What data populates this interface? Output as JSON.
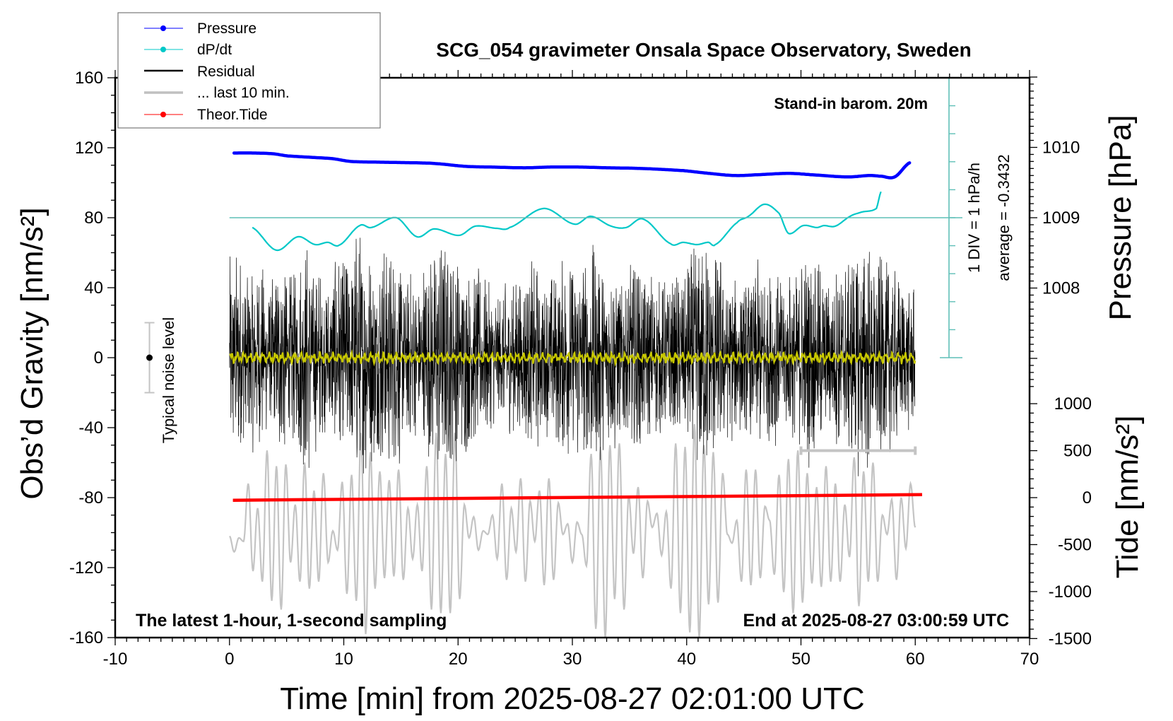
{
  "chart_data": {
    "type": "line",
    "title": "SCG_054 gravimeter Onsala Space Observatory, Sweden",
    "xlabel": "Time [min] from 2025-08-27 02:01:00 UTC",
    "ylabel": "Obs’d Gravity [nm/s²]",
    "ylabel_pressure": "Pressure [hPa]",
    "ylabel_tide": "Tide [nm/s²]",
    "xlim": [
      -10,
      70
    ],
    "ylim": [
      -160,
      160
    ],
    "grid": false,
    "xticks": [
      "-10",
      "0",
      "10",
      "20",
      "30",
      "40",
      "50",
      "60",
      "70"
    ],
    "yticks": [
      "160",
      "120",
      "80",
      "40",
      "0",
      "-40",
      "-80",
      "-120",
      "-160"
    ],
    "pressure_axis": {
      "ticks": [
        "1010",
        "1009",
        "1008"
      ],
      "ref_hPa": 1009,
      "ref_gravity": 80,
      "gravity_per_hPa": 40.2
    },
    "tide_axis": {
      "ticks": [
        "1000",
        "500",
        "0",
        "-500",
        "-1000",
        "-1500"
      ],
      "ref_tide": 0,
      "ref_gravity": -80,
      "gravity_per_unit": 0.0537
    },
    "dpdt_scale": {
      "div_label": "1 DIV = 1 hPa/h",
      "average_label": "average = -0.3432",
      "zero_gravity": 80,
      "gravity_per_hPa_h": 16
    },
    "annotations": {
      "barometer": "Stand-in barom. 20m",
      "sampling": "The latest 1-hour, 1-second sampling",
      "end_time": "End at 2025-08-27 03:00:59 UTC",
      "noise_label": "Typical noise level"
    },
    "legend": {
      "placement": "top-left",
      "entries": [
        {
          "label": "Pressure",
          "color": "#0000ff",
          "marker": "dot"
        },
        {
          "label": "dP/dt",
          "color": "#00c8c8",
          "marker": "dot"
        },
        {
          "label": "Residual",
          "color": "#000000",
          "marker": "line"
        },
        {
          "label": "... last 10 min.",
          "color": "#c0c0c0",
          "marker": "line"
        },
        {
          "label": "Theor.Tide",
          "color": "#ff0000",
          "marker": "dot"
        }
      ]
    },
    "series": {
      "pressure_hPa": {
        "t": [
          0.4,
          2,
          3.8,
          5,
          7,
          9,
          10.6,
          13,
          16.6,
          18,
          20.7,
          23,
          25.8,
          28,
          30.6,
          33,
          36,
          39.7,
          42,
          44.2,
          46,
          48.9,
          51,
          54.1,
          56,
          57,
          58.2,
          59.5
        ],
        "values": [
          1009.92,
          1009.92,
          1009.91,
          1009.88,
          1009.86,
          1009.84,
          1009.8,
          1009.79,
          1009.78,
          1009.77,
          1009.73,
          1009.72,
          1009.71,
          1009.72,
          1009.72,
          1009.71,
          1009.7,
          1009.67,
          1009.63,
          1009.6,
          1009.61,
          1009.63,
          1009.61,
          1009.58,
          1009.6,
          1009.59,
          1009.58,
          1009.78
        ]
      },
      "dpdt_hPa_per_h": {
        "t": [
          2.0,
          4.1,
          6.0,
          7.5,
          8.6,
          9.6,
          11.4,
          12.4,
          14.6,
          16.4,
          17.9,
          20.1,
          21.5,
          23.4,
          24.5,
          27.5,
          30.2,
          31.6,
          33.4,
          34.7,
          36.2,
          38.6,
          39.7,
          40.9,
          41.9,
          42.5,
          44.4,
          45.4,
          46.8,
          48.1,
          48.9,
          50.2,
          51.4,
          52.0,
          53.0,
          54.3,
          55.3,
          56.6,
          57.0
        ],
        "values": [
          -0.35,
          -1.16,
          -0.68,
          -0.96,
          -0.88,
          -0.98,
          -0.28,
          -0.35,
          0.0,
          -0.68,
          -0.4,
          -0.63,
          -0.3,
          -0.38,
          -0.35,
          0.33,
          -0.23,
          0.05,
          -0.3,
          -0.35,
          -0.05,
          -0.93,
          -0.88,
          -0.96,
          -0.88,
          -0.96,
          -0.18,
          0.05,
          0.48,
          0.15,
          -0.56,
          -0.28,
          -0.35,
          -0.28,
          -0.3,
          0.05,
          0.2,
          0.33,
          0.93
        ]
      },
      "theor_tide": {
        "t": [
          0.3,
          60.6
        ],
        "values": [
          -28,
          32
        ]
      },
      "residual_envelope_per_minute": [
        55,
        45,
        50,
        40,
        55,
        45,
        60,
        50,
        40,
        55,
        60,
        65,
        55,
        60,
        55,
        45,
        40,
        55,
        60,
        55,
        50,
        45,
        40,
        35,
        40,
        45,
        50,
        40,
        45,
        50,
        55,
        60,
        55,
        50,
        45,
        55,
        45,
        40,
        40,
        45,
        55,
        65,
        55,
        45,
        40,
        40,
        50,
        45,
        40,
        45,
        55,
        50,
        45,
        50,
        55,
        60,
        55,
        50,
        45,
        40
      ],
      "filtered_residual_amplitude": 3,
      "last10_extrema": [
        -102,
        -111,
        -103,
        -105,
        -72,
        -122,
        -86,
        -128,
        -53,
        -139,
        -62,
        -144,
        -61,
        -117,
        -84,
        -128,
        -60,
        -132,
        -76,
        -128,
        -66,
        -117,
        -99,
        -110,
        -71,
        -135,
        -67,
        -139,
        -43,
        -158,
        -54,
        -132,
        -65,
        -126,
        -70,
        -125,
        -64,
        -127,
        -86,
        -115,
        -84,
        -122,
        -62,
        -144,
        -43,
        -146,
        -55,
        -146,
        -43,
        -138,
        -84,
        -103,
        -91,
        -110,
        -99,
        -101,
        -90,
        -115,
        -72,
        -127,
        -86,
        -111,
        -69,
        -128,
        -82,
        -105,
        -76,
        -130,
        -69,
        -127,
        -83,
        -101,
        -95,
        -117,
        -94,
        -101,
        -119,
        -55,
        -155,
        -51,
        -160,
        -50,
        -138,
        -49,
        -144,
        -79,
        -112,
        -74,
        -126,
        -82,
        -97,
        -89,
        -113,
        -88,
        -132,
        -49,
        -146,
        -51,
        -157,
        -38,
        -160,
        -50,
        -141,
        -54,
        -140,
        -66,
        -101,
        -106,
        -93,
        -128,
        -64,
        -130,
        -64,
        -126,
        -85,
        -93,
        -124,
        -67,
        -134,
        -58,
        -146,
        -53,
        -140,
        -66,
        -129,
        -74,
        -131,
        -62,
        -128,
        -72,
        -128,
        -84,
        -114,
        -57,
        -142,
        -65,
        -128,
        -60,
        -128,
        -90,
        -101,
        -81,
        -127,
        -80,
        -109,
        -72,
        -97
      ],
      "last10_bar": {
        "t": [
          50,
          60
        ],
        "tide": 500
      },
      "noise_level": {
        "t": -7,
        "center": 0,
        "half_range": 20
      }
    }
  }
}
